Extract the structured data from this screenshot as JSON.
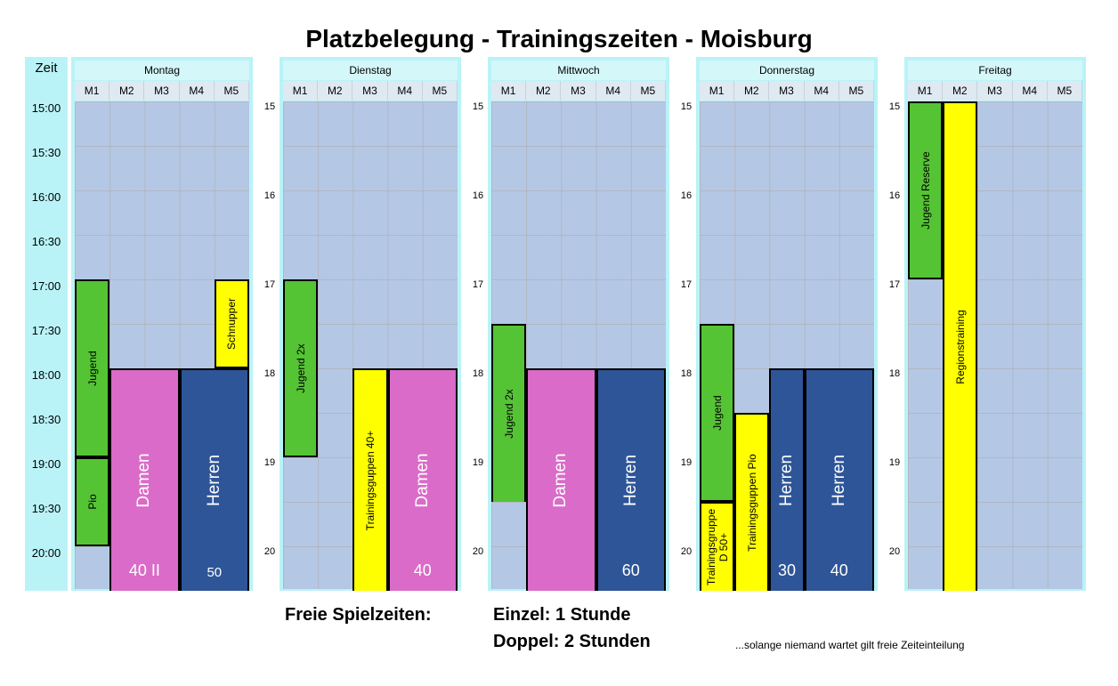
{
  "title": "Platzbelegung - Trainingszeiten - Moisburg",
  "time_column": {
    "header": "Zeit",
    "labels": [
      "15:00",
      "15:30",
      "16:00",
      "16:30",
      "17:00",
      "17:30",
      "18:00",
      "18:30",
      "19:00",
      "19:30",
      "20:00"
    ]
  },
  "hour_labels": [
    "15",
    "16",
    "17",
    "18",
    "19",
    "20"
  ],
  "days": [
    {
      "name": "Montag",
      "courts": [
        "M1",
        "M2",
        "M3",
        "M4",
        "M5"
      ],
      "show_hour_labels": false,
      "bookings": [
        {
          "label": "Jugend",
          "court": 1,
          "span": 1,
          "start": "17:00",
          "end": "19:00",
          "color": "green"
        },
        {
          "label": "Pio",
          "court": 1,
          "span": 1,
          "start": "19:00",
          "end": "20:00",
          "color": "green"
        },
        {
          "label": "Schnupper",
          "court": 5,
          "span": 1,
          "start": "17:00",
          "end": "18:00",
          "color": "yellow"
        },
        {
          "label": "Damen",
          "number": "40 II",
          "court": 2,
          "span": 2,
          "start": "18:00",
          "end": "20:30",
          "color": "pink"
        },
        {
          "label": "Herren",
          "number": "50",
          "court": 4,
          "span": 2,
          "start": "18:00",
          "end": "20:30",
          "color": "navy"
        }
      ]
    },
    {
      "name": "Dienstag",
      "courts": [
        "M1",
        "M2",
        "M3",
        "M4",
        "M5"
      ],
      "show_hour_labels": true,
      "bookings": [
        {
          "label": "Jugend 2x",
          "court": 1,
          "span": 1,
          "start": "17:00",
          "end": "19:00",
          "color": "green"
        },
        {
          "label": "Trainingsguppen 40+",
          "court": 3,
          "span": 1,
          "start": "18:00",
          "end": "20:30",
          "color": "yellow"
        },
        {
          "label": "Damen",
          "number": "40",
          "court": 4,
          "span": 2,
          "start": "18:00",
          "end": "20:30",
          "color": "pink"
        }
      ]
    },
    {
      "name": "Mittwoch",
      "courts": [
        "M1",
        "M2",
        "M3",
        "M4",
        "M5"
      ],
      "show_hour_labels": true,
      "bookings": [
        {
          "label": "Jugend 2x",
          "court": 1,
          "span": 1,
          "start": "17:30",
          "end": "19:30",
          "color": "green",
          "noborder_bottom": true
        },
        {
          "label": "Damen",
          "court": 2,
          "span": 2,
          "start": "18:00",
          "end": "20:30",
          "color": "pink"
        },
        {
          "label": "Herren",
          "number": "60",
          "court": 4,
          "span": 2,
          "start": "18:00",
          "end": "20:30",
          "color": "navy"
        }
      ]
    },
    {
      "name": "Donnerstag",
      "courts": [
        "M1",
        "M2",
        "M3",
        "M4",
        "M5"
      ],
      "show_hour_labels": true,
      "bookings": [
        {
          "label": "Jugend",
          "court": 1,
          "span": 1,
          "start": "17:30",
          "end": "19:30",
          "color": "green"
        },
        {
          "label": "Trainingsgruppe D 50+",
          "court": 1,
          "span": 1,
          "start": "19:30",
          "end": "20:30",
          "color": "yellow"
        },
        {
          "label": "Trainingsguppen Pio",
          "court": 2,
          "span": 1,
          "start": "18:30",
          "end": "20:30",
          "color": "yellow"
        },
        {
          "label": "Herren",
          "number": "30",
          "court": 3,
          "span": 1,
          "start": "18:00",
          "end": "20:30",
          "color": "navy"
        },
        {
          "label": "Herren",
          "number": "40",
          "court": 4,
          "span": 2,
          "start": "18:00",
          "end": "20:30",
          "color": "navy"
        }
      ]
    },
    {
      "name": "Freitag",
      "courts": [
        "M1",
        "M2",
        "M3",
        "M4",
        "M5"
      ],
      "show_hour_labels": true,
      "bookings": [
        {
          "label": "Jugend Reserve",
          "court": 1,
          "span": 1,
          "start": "15:00",
          "end": "17:00",
          "color": "green"
        },
        {
          "label": "Regionstraining",
          "court": 2,
          "span": 1,
          "start": "15:00",
          "end": "20:30",
          "color": "yellow"
        }
      ]
    }
  ],
  "footer": {
    "free_label": "Freie Spielzeiten:",
    "single": "Einzel:   1 Stunde",
    "double": "Doppel:  2 Stunden",
    "note": "...solange niemand wartet gilt freie Zeiteinteilung"
  },
  "colors": {
    "background": "#ffffff",
    "panel": "#b9f3f7",
    "grid": "#b4c8e6",
    "green": "#55c434",
    "yellow": "#ffff00",
    "pink": "#da6bc8",
    "navy": "#2e5597"
  }
}
